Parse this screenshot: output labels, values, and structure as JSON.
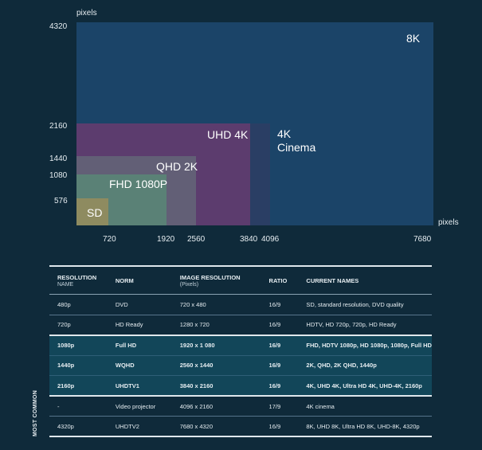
{
  "diagram": {
    "y_axis_label": "pixels",
    "x_axis_label": "pixels",
    "y_ticks": [
      "4320",
      "2160",
      "1440",
      "1080",
      "576"
    ],
    "x_ticks": [
      "720",
      "1920",
      "2560",
      "3840",
      "4096",
      "7680"
    ],
    "resolutions": [
      {
        "label": "8K",
        "width": 7680,
        "height": 4320,
        "color": "#1b4468"
      },
      {
        "label": "4K Cinema",
        "width": 4096,
        "height": 2160,
        "color": "#2a3e64"
      },
      {
        "label": "UHD 4K",
        "width": 3840,
        "height": 2160,
        "color": "#5c3c6e"
      },
      {
        "label": "QHD 2K",
        "width": 2560,
        "height": 1440,
        "color": "#625f76"
      },
      {
        "label": "FHD 1080P",
        "width": 1920,
        "height": 1080,
        "color": "#5a8176"
      },
      {
        "label": "SD",
        "width": 720,
        "height": 576,
        "color": "#8e8b60"
      }
    ]
  },
  "table": {
    "headers": [
      {
        "main": "RESOLUTION",
        "sub": "NAME"
      },
      {
        "main": "NORM",
        "sub": ""
      },
      {
        "main": "IMAGE RESOLUTION",
        "sub": "(Pixels)"
      },
      {
        "main": "RATIO",
        "sub": ""
      },
      {
        "main": "CURRENT NAMES",
        "sub": ""
      }
    ],
    "rows": [
      [
        "480p",
        "DVD",
        "720 x 480",
        "16/9",
        "SD, standard resolution, DVD quality"
      ],
      [
        "720p",
        "HD Ready",
        "1280 x 720",
        "16/9",
        "HDTV, HD 720p, 720p, HD Ready"
      ],
      [
        "1080p",
        "Full HD",
        "1920 x 1 080",
        "16/9",
        "FHD, HDTV 1080p, HD 1080p, 1080p, Full HD"
      ],
      [
        "1440p",
        "WQHD",
        "2560 x 1440",
        "16/9",
        "2K, QHD, 2K QHD, 1440p"
      ],
      [
        "2160p",
        "UHDTV1",
        "3840 x 2160",
        "16/9",
        "4K, UHD 4K, Ultra HD 4K, UHD-4K, 2160p"
      ],
      [
        "-",
        "Video projector",
        "4096 x 2160",
        "17/9",
        "4K cinema"
      ],
      [
        "4320p",
        "UHDTV2",
        "7680 x 4320",
        "16/9",
        "8K, UHD 8K, Ultra HD 8K, UHD-8K, 4320p"
      ]
    ],
    "most_common_label": "MOST COMMON"
  }
}
